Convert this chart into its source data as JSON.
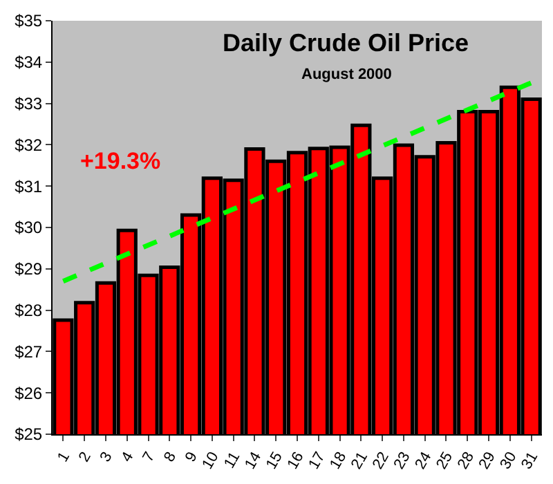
{
  "chart_data": {
    "type": "bar",
    "title": "Daily Crude Oil Price",
    "subtitle": "August 2000",
    "categories": [
      "1",
      "2",
      "3",
      "4",
      "7",
      "8",
      "9",
      "10",
      "11",
      "14",
      "15",
      "16",
      "17",
      "18",
      "21",
      "22",
      "23",
      "24",
      "25",
      "28",
      "29",
      "30",
      "31"
    ],
    "series": [
      {
        "color": "#ff0000",
        "values": [
          27.76,
          28.18,
          28.66,
          29.93,
          28.84,
          29.04,
          30.3,
          31.19,
          31.14,
          31.9,
          31.6,
          31.81,
          31.91,
          31.94,
          32.47,
          31.19,
          31.99,
          31.71,
          32.05,
          32.8,
          32.8,
          33.39,
          33.1
        ]
      },
      {
        "type": "line",
        "color": "#00ff00",
        "line_style": "dashed",
        "x": [
          "1",
          "31"
        ],
        "values": [
          28.7,
          33.5
        ]
      }
    ],
    "ylim": [
      25,
      35
    ],
    "yticks": [
      {
        "value": 25,
        "label": "$25"
      },
      {
        "value": 26,
        "label": "$26"
      },
      {
        "value": 27,
        "label": "$27"
      },
      {
        "value": 28,
        "label": "$28"
      },
      {
        "value": 29,
        "label": "$29"
      },
      {
        "value": 30,
        "label": "$30"
      },
      {
        "value": 31,
        "label": "$31"
      },
      {
        "value": 32,
        "label": "$32"
      },
      {
        "value": 33,
        "label": "$33"
      },
      {
        "value": 34,
        "label": "$34"
      },
      {
        "value": 35,
        "label": "$35"
      }
    ],
    "annotations": [
      "+19.3%"
    ],
    "grid": false,
    "legend": false
  }
}
